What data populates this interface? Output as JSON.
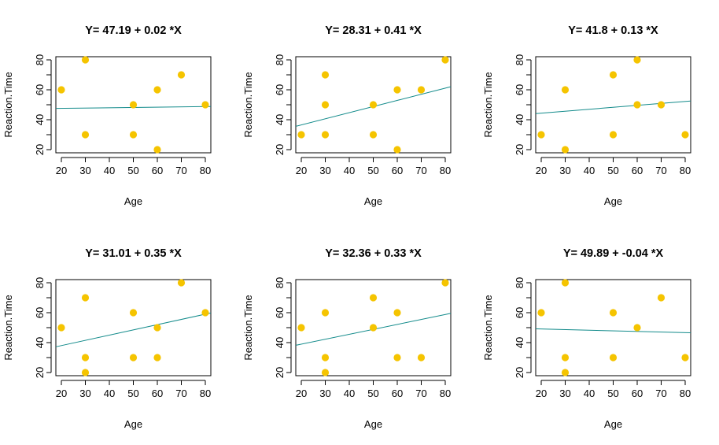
{
  "chart_data": [
    {
      "type": "scatter",
      "title": "Y= 47.19 + 0.02 *X",
      "xlabel": "Age",
      "ylabel": "Reaction.Time",
      "xlim": [
        20,
        80
      ],
      "ylim": [
        20,
        80
      ],
      "xticks": [
        20,
        30,
        40,
        50,
        60,
        70,
        80
      ],
      "yticks": [
        20,
        40,
        60,
        80
      ],
      "points": [
        [
          20,
          60
        ],
        [
          30,
          80
        ],
        [
          30,
          30
        ],
        [
          50,
          50
        ],
        [
          50,
          30
        ],
        [
          60,
          60
        ],
        [
          60,
          20
        ],
        [
          70,
          70
        ],
        [
          80,
          50
        ]
      ],
      "fit": {
        "intercept": 47.19,
        "slope": 0.02
      }
    },
    {
      "type": "scatter",
      "title": "Y= 28.31 + 0.41 *X",
      "xlabel": "Age",
      "ylabel": "Reaction.Time",
      "xlim": [
        20,
        80
      ],
      "ylim": [
        20,
        80
      ],
      "xticks": [
        20,
        30,
        40,
        50,
        60,
        70,
        80
      ],
      "yticks": [
        20,
        40,
        60,
        80
      ],
      "points": [
        [
          20,
          30
        ],
        [
          30,
          70
        ],
        [
          30,
          50
        ],
        [
          30,
          30
        ],
        [
          50,
          50
        ],
        [
          50,
          30
        ],
        [
          60,
          60
        ],
        [
          60,
          20
        ],
        [
          70,
          60
        ],
        [
          80,
          80
        ]
      ],
      "fit": {
        "intercept": 28.31,
        "slope": 0.41
      }
    },
    {
      "type": "scatter",
      "title": "Y= 41.8 + 0.13 *X",
      "xlabel": "Age",
      "ylabel": "Reaction.Time",
      "xlim": [
        20,
        80
      ],
      "ylim": [
        20,
        80
      ],
      "xticks": [
        20,
        30,
        40,
        50,
        60,
        70,
        80
      ],
      "yticks": [
        20,
        40,
        60,
        80
      ],
      "points": [
        [
          20,
          30
        ],
        [
          30,
          60
        ],
        [
          30,
          20
        ],
        [
          50,
          70
        ],
        [
          50,
          30
        ],
        [
          60,
          80
        ],
        [
          60,
          50
        ],
        [
          70,
          50
        ],
        [
          80,
          30
        ]
      ],
      "fit": {
        "intercept": 41.8,
        "slope": 0.13
      }
    },
    {
      "type": "scatter",
      "title": "Y= 31.01 + 0.35 *X",
      "xlabel": "Age",
      "ylabel": "Reaction.Time",
      "xlim": [
        20,
        80
      ],
      "ylim": [
        20,
        80
      ],
      "xticks": [
        20,
        30,
        40,
        50,
        60,
        70,
        80
      ],
      "yticks": [
        20,
        40,
        60,
        80
      ],
      "points": [
        [
          20,
          50
        ],
        [
          30,
          70
        ],
        [
          30,
          30
        ],
        [
          30,
          20
        ],
        [
          50,
          60
        ],
        [
          50,
          30
        ],
        [
          60,
          50
        ],
        [
          60,
          30
        ],
        [
          70,
          80
        ],
        [
          80,
          60
        ]
      ],
      "fit": {
        "intercept": 31.01,
        "slope": 0.35
      }
    },
    {
      "type": "scatter",
      "title": "Y= 32.36 + 0.33 *X",
      "xlabel": "Age",
      "ylabel": "Reaction.Time",
      "xlim": [
        20,
        80
      ],
      "ylim": [
        20,
        80
      ],
      "xticks": [
        20,
        30,
        40,
        50,
        60,
        70,
        80
      ],
      "yticks": [
        20,
        40,
        60,
        80
      ],
      "points": [
        [
          20,
          50
        ],
        [
          30,
          60
        ],
        [
          30,
          30
        ],
        [
          30,
          20
        ],
        [
          50,
          70
        ],
        [
          50,
          50
        ],
        [
          60,
          60
        ],
        [
          60,
          30
        ],
        [
          70,
          30
        ],
        [
          80,
          80
        ]
      ],
      "fit": {
        "intercept": 32.36,
        "slope": 0.33
      }
    },
    {
      "type": "scatter",
      "title": "Y= 49.89 + -0.04 *X",
      "xlabel": "Age",
      "ylabel": "Reaction.Time",
      "xlim": [
        20,
        80
      ],
      "ylim": [
        20,
        80
      ],
      "xticks": [
        20,
        30,
        40,
        50,
        60,
        70,
        80
      ],
      "yticks": [
        20,
        40,
        60,
        80
      ],
      "points": [
        [
          20,
          60
        ],
        [
          30,
          80
        ],
        [
          30,
          30
        ],
        [
          30,
          20
        ],
        [
          50,
          60
        ],
        [
          50,
          30
        ],
        [
          60,
          50
        ],
        [
          70,
          70
        ],
        [
          80,
          30
        ]
      ],
      "fit": {
        "intercept": 49.89,
        "slope": -0.04
      }
    }
  ],
  "colors": {
    "point": "#f5c400",
    "fit_line": "#138b8b",
    "axis": "#000000",
    "background": "#ffffff"
  }
}
